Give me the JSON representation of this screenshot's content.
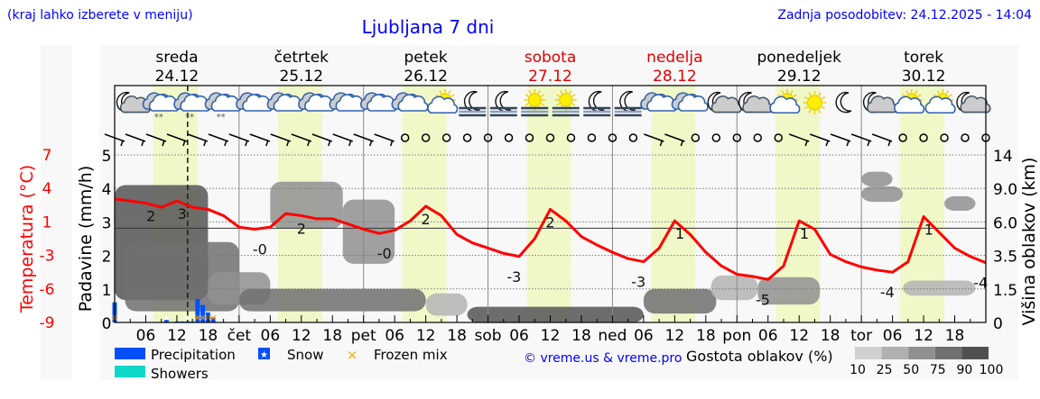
{
  "header": {
    "location_hint": "(kraj lahko izberete v meniju)",
    "title": "Ljubljana 7 dni",
    "updated": "Zadnja posodobitev: 24.12.2025 - 14:04"
  },
  "days": [
    {
      "name": "sreda",
      "date": "24.12",
      "weekend": false
    },
    {
      "name": "četrtek",
      "date": "25.12",
      "weekend": false
    },
    {
      "name": "petek",
      "date": "26.12",
      "weekend": false
    },
    {
      "name": "sobota",
      "date": "27.12",
      "weekend": true
    },
    {
      "name": "nedelja",
      "date": "28.12",
      "weekend": true
    },
    {
      "name": "ponedeljek",
      "date": "29.12",
      "weekend": false
    },
    {
      "name": "torek",
      "date": "30.12",
      "weekend": false
    }
  ],
  "colors": {
    "temperature": "#ff0000",
    "precipitation": "#0050ff",
    "showers": "#10d8c8",
    "frozen_mix": "#ffa500",
    "daylight": "#f0f8c8",
    "weekend": "#e00000",
    "credit": "#0000ff"
  },
  "legend": {
    "precipitation": "Precipitation",
    "snow": "Snow",
    "frozen_mix": "Frozen mix",
    "showers": "Showers",
    "credit": "© vreme.us & vreme.pro",
    "cloud_density_title": "Gostota oblakov (%)",
    "cloud_density_ticks": [
      "10",
      "25",
      "50",
      "75",
      "90",
      "100"
    ],
    "cloud_density_colors": [
      "#d0d0d0",
      "#b0b0b0",
      "#909090",
      "#707070",
      "#505050"
    ]
  },
  "chart_data": {
    "type": "line",
    "title": "Ljubljana 7 dni",
    "xlabel": "",
    "x_tick_labels": [
      "06",
      "12",
      "18",
      "čet",
      "06",
      "12",
      "18",
      "pet",
      "06",
      "12",
      "18",
      "sob",
      "06",
      "12",
      "18",
      "ned",
      "06",
      "12",
      "18",
      "pon",
      "06",
      "12",
      "18",
      "tor",
      "06",
      "12",
      "18"
    ],
    "now_marker": "24.12.2025 14:04",
    "left_axis": {
      "label": "Padavine (mm/h)",
      "ticks": [
        "0",
        "1",
        "2",
        "3",
        "4",
        "5"
      ],
      "range": [
        0,
        5
      ]
    },
    "temp_axis": {
      "label": "Temperatura (°C)",
      "ticks": [
        "7",
        "4",
        "1",
        "-3",
        "-6",
        "-9"
      ],
      "range": [
        -9,
        7
      ]
    },
    "right_axis": {
      "label": "Višina oblakov (km)",
      "ticks": [
        "0",
        "1.5",
        "3.5",
        "6.0",
        "9.0",
        "14"
      ]
    },
    "grid": true,
    "temperature": {
      "hours_step": 3,
      "values": [
        2.8,
        2.6,
        2.4,
        2.0,
        2.6,
        2.0,
        1.8,
        1.2,
        0.1,
        -0.1,
        0.1,
        1.4,
        1.2,
        0.9,
        0.9,
        0.4,
        -0.1,
        -0.5,
        -0.2,
        0.7,
        2.1,
        1.2,
        -0.6,
        -1.4,
        -1.9,
        -2.4,
        -2.7,
        -1.0,
        1.8,
        0.7,
        -0.8,
        -1.6,
        -2.3,
        -2.9,
        -3.2,
        -1.9,
        0.7,
        -0.6,
        -2.3,
        -3.6,
        -4.4,
        -4.6,
        -4.9,
        -3.6,
        0.7,
        -0.1,
        -2.5,
        -3.2,
        -3.7,
        -4.0,
        -4.2,
        -3.2,
        1.1,
        -0.4,
        -1.9,
        -2.7,
        -3.3
      ]
    },
    "temperature_labels": [
      {
        "hour": 7,
        "text": "2"
      },
      {
        "hour": 13,
        "text": "3"
      },
      {
        "hour": 28,
        "text": "-0"
      },
      {
        "hour": 36,
        "text": "2"
      },
      {
        "hour": 52,
        "text": "-0"
      },
      {
        "hour": 60,
        "text": "2"
      },
      {
        "hour": 77,
        "text": "-3"
      },
      {
        "hour": 84,
        "text": "2"
      },
      {
        "hour": 101,
        "text": "-3"
      },
      {
        "hour": 109,
        "text": "1"
      },
      {
        "hour": 125,
        "text": "-5"
      },
      {
        "hour": 133,
        "text": "1"
      },
      {
        "hour": 149,
        "text": "-4"
      },
      {
        "hour": 157,
        "text": "1"
      },
      {
        "hour": 167,
        "text": "-4"
      }
    ],
    "precipitation": [
      {
        "hour": 0,
        "mm": 0.6
      },
      {
        "hour": 10,
        "mm": 0.08
      },
      {
        "hour": 12,
        "mm": 0.03
      },
      {
        "hour": 13,
        "mm": 0.03
      },
      {
        "hour": 14,
        "mm": 0.03
      },
      {
        "hour": 15,
        "mm": 0.03
      },
      {
        "hour": 16,
        "mm": 0.7
      },
      {
        "hour": 17,
        "mm": 0.52
      },
      {
        "hour": 18,
        "mm": 0.3
      },
      {
        "hour": 19,
        "mm": 0.15
      }
    ],
    "snow_hours": [
      10,
      14,
      20
    ],
    "frozen_mix_hours": [
      0,
      16,
      17,
      18,
      19
    ],
    "daylight_hours": [
      7.5,
      16
    ],
    "cloud_density": [
      {
        "from_h": 0,
        "to_h": 18,
        "base_km": 1.0,
        "top_km": 9.5,
        "density": 90
      },
      {
        "from_h": 2,
        "to_h": 24,
        "base_km": 0.5,
        "top_km": 4.5,
        "density": 75
      },
      {
        "from_h": 18,
        "to_h": 30,
        "base_km": 0.8,
        "top_km": 2.5,
        "density": 50
      },
      {
        "from_h": 24,
        "to_h": 60,
        "base_km": 0.5,
        "top_km": 1.5,
        "density": 75
      },
      {
        "from_h": 30,
        "to_h": 44,
        "base_km": 5.5,
        "top_km": 10.0,
        "density": 50
      },
      {
        "from_h": 44,
        "to_h": 54,
        "base_km": 3.0,
        "top_km": 8.0,
        "density": 50
      },
      {
        "from_h": 60,
        "to_h": 68,
        "base_km": 0.3,
        "top_km": 1.3,
        "density": 25
      },
      {
        "from_h": 68,
        "to_h": 102,
        "base_km": 0,
        "top_km": 0.7,
        "density": 90
      },
      {
        "from_h": 102,
        "to_h": 116,
        "base_km": 0.4,
        "top_km": 1.5,
        "density": 75
      },
      {
        "from_h": 115,
        "to_h": 124,
        "base_km": 1.0,
        "top_km": 2.3,
        "density": 25
      },
      {
        "from_h": 124,
        "to_h": 136,
        "base_km": 0.8,
        "top_km": 2.2,
        "density": 50
      },
      {
        "from_h": 144,
        "to_h": 150,
        "base_km": 9.3,
        "top_km": 11.5,
        "density": 50
      },
      {
        "from_h": 144,
        "to_h": 152,
        "base_km": 7.8,
        "top_km": 9.3,
        "density": 50
      },
      {
        "from_h": 160,
        "to_h": 166,
        "base_km": 7.0,
        "top_km": 8.3,
        "density": 50
      },
      {
        "from_h": 152,
        "to_h": 166,
        "base_km": 1.2,
        "top_km": 2.0,
        "density": 25
      }
    ],
    "weather_icons": [
      "moon-cloud",
      "cloud-snow",
      "cloud-snow",
      "cloud-snow",
      "cloud",
      "cloud",
      "cloud",
      "cloud",
      "cloud",
      "cloud",
      "sun-cloud",
      "moon-fog",
      "moon-fog",
      "sun-fog",
      "sun-fog",
      "moon-fog",
      "moon-fog",
      "cloud",
      "cloud",
      "moon-cloud",
      "moon-cloud",
      "sun-cloud",
      "sun",
      "moon",
      "moon-cloud",
      "sun-cloud",
      "sun-cloud",
      "moon-cloud"
    ],
    "wind": [
      "barb",
      "barb",
      "barb",
      "barb",
      "barb",
      "barb",
      "barb",
      "barb",
      "barb",
      "barb",
      "barb",
      "barb",
      "barb",
      "barb",
      "calm",
      "calm",
      "calm",
      "calm",
      "calm",
      "calm",
      "calm",
      "calm",
      "calm",
      "calm",
      "calm",
      "calm",
      "barb",
      "barb",
      "calm",
      "calm",
      "calm",
      "calm",
      "calm",
      "barb",
      "barb",
      "barb",
      "barb",
      "barb",
      "calm",
      "calm",
      "calm",
      "calm",
      "calm"
    ]
  }
}
